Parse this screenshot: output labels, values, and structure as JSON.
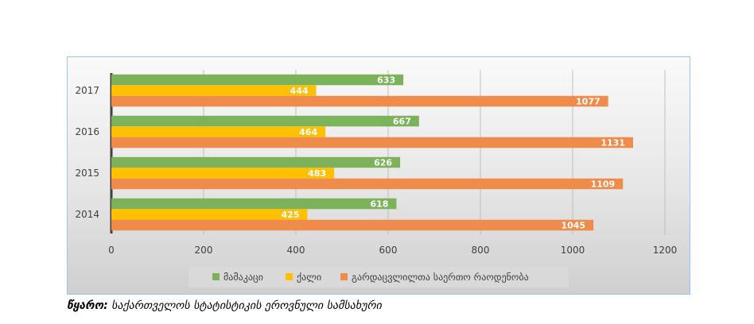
{
  "chart_data": {
    "type": "bar",
    "orientation": "horizontal",
    "categories": [
      "2014",
      "2015",
      "2016",
      "2017"
    ],
    "series": [
      {
        "name": "მამაკაცი",
        "color": "#7cb35a",
        "values": [
          618,
          626,
          667,
          633
        ]
      },
      {
        "name": "ქალი",
        "color": "#ffc000",
        "values": [
          425,
          483,
          464,
          444
        ]
      },
      {
        "name": "გარდაცვლილთა საერთო რაოდენობა",
        "color": "#ef8c4c",
        "values": [
          1045,
          1109,
          1131,
          1077
        ]
      }
    ],
    "x_ticks": [
      "0",
      "200",
      "400",
      "600",
      "800",
      "1000",
      "1200"
    ],
    "xlim": [
      0,
      1200
    ],
    "grid": "vertical",
    "legend_position": "bottom",
    "data_labels": true
  },
  "source": {
    "label": "წყარო:",
    "text": "საქართველოს სტატისტიკის ეროვნული სამსახური"
  }
}
